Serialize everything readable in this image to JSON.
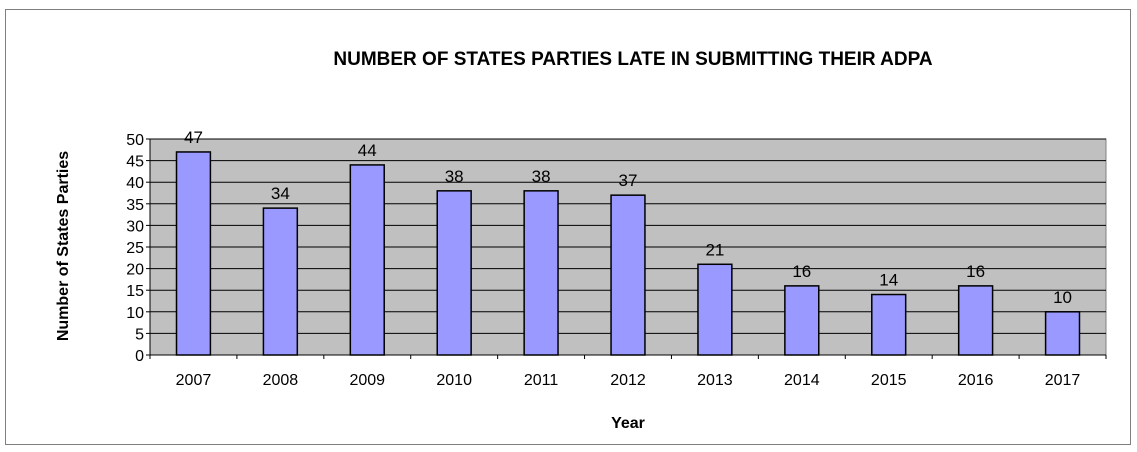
{
  "chart_data": {
    "type": "bar",
    "title": "NUMBER OF STATES PARTIES LATE IN SUBMITTING THEIR ADPA",
    "xlabel": "Year",
    "ylabel": "Number of States Parties",
    "categories": [
      "2007",
      "2008",
      "2009",
      "2010",
      "2011",
      "2012",
      "2013",
      "2014",
      "2015",
      "2016",
      "2017"
    ],
    "values": [
      47,
      34,
      44,
      38,
      38,
      37,
      21,
      16,
      14,
      16,
      10
    ],
    "ylim": [
      0,
      50
    ],
    "yticks": [
      0,
      5,
      10,
      15,
      20,
      25,
      30,
      35,
      40,
      45,
      50
    ],
    "grid": true,
    "legend": "none",
    "colors": {
      "bar_fill": "#9999ff",
      "bar_stroke": "#000000",
      "plot_background": "#c0c0c0",
      "gridline": "#000000"
    }
  }
}
